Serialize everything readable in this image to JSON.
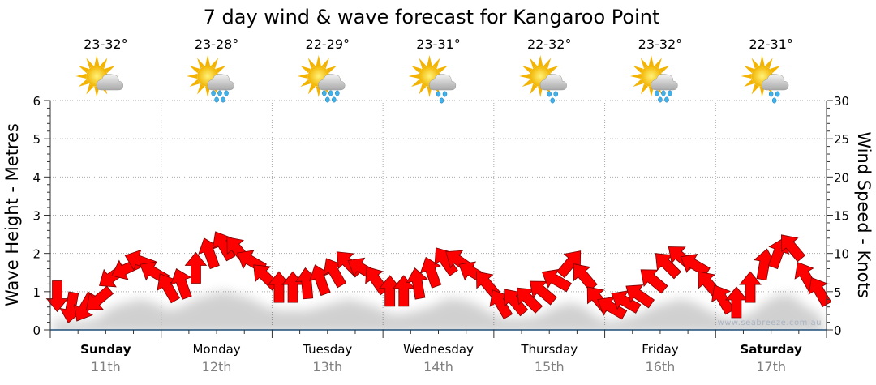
{
  "chart_data": {
    "type": "line",
    "title": "7 day wind & wave forecast for Kangaroo Point",
    "ylabel_left": "Wave Height - Metres",
    "ylabel_right": "Wind Speed - Knots",
    "ylim_left": [
      0,
      6
    ],
    "ylim_right": [
      0,
      30
    ],
    "yticks_left": [
      "0",
      "1",
      "2",
      "3",
      "4",
      "5",
      "6"
    ],
    "yticks_right": [
      "0",
      "5",
      "10",
      "15",
      "20",
      "25",
      "30"
    ],
    "grid": true,
    "watermark": "www.seabreeze.com.au",
    "days": [
      {
        "name": "Sunday",
        "date": "11th",
        "temp": "23-32°",
        "icon": "sun-cloud",
        "bold": true
      },
      {
        "name": "Monday",
        "date": "12th",
        "temp": "23-28°",
        "icon": "sun-cloud-rain",
        "bold": false
      },
      {
        "name": "Tuesday",
        "date": "13th",
        "temp": "22-29°",
        "icon": "sun-cloud-rain",
        "bold": false
      },
      {
        "name": "Wednesday",
        "date": "14th",
        "temp": "23-31°",
        "icon": "sun-cloud-light-rain",
        "bold": false
      },
      {
        "name": "Thursday",
        "date": "15th",
        "temp": "22-32°",
        "icon": "sun-cloud-light-rain",
        "bold": false
      },
      {
        "name": "Friday",
        "date": "16th",
        "temp": "23-32°",
        "icon": "sun-cloud-rain",
        "bold": false
      },
      {
        "name": "Saturday",
        "date": "17th",
        "temp": "22-31°",
        "icon": "sun-cloud-light-rain",
        "bold": true
      }
    ],
    "wind_speed_knots": [
      4.5,
      3,
      3,
      4,
      7,
      8,
      9,
      7.5,
      5.5,
      6,
      8,
      10,
      11,
      10.5,
      9,
      7,
      5.5,
      5.5,
      6,
      6.5,
      7.5,
      8.7,
      8,
      6.5,
      5,
      5,
      6,
      7.5,
      9,
      9,
      7.5,
      6,
      3.4,
      3.7,
      4,
      5,
      6.5,
      8.7,
      7,
      4,
      2.9,
      3.7,
      4.5,
      6.5,
      8.5,
      9.5,
      8.5,
      6,
      4,
      3.5,
      5.5,
      8.5,
      10,
      10.8,
      7,
      5
    ],
    "wind_direction_to_deg": [
      180,
      190,
      210,
      230,
      235,
      245,
      290,
      300,
      330,
      340,
      0,
      340,
      330,
      320,
      300,
      315,
      0,
      0,
      355,
      340,
      330,
      315,
      300,
      325,
      0,
      0,
      350,
      340,
      325,
      305,
      300,
      320,
      330,
      320,
      315,
      310,
      300,
      40,
      320,
      320,
      300,
      300,
      305,
      310,
      315,
      310,
      300,
      320,
      330,
      0,
      0,
      10,
      20,
      320,
      330,
      330
    ],
    "wave_height_m": [
      0.4,
      0.3,
      0.3,
      0.4,
      0.7,
      0.8,
      0.9,
      0.8,
      0.6,
      0.7,
      0.9,
      1.0,
      1.1,
      1.0,
      0.9,
      0.7,
      0.6,
      0.6,
      0.6,
      0.7,
      0.8,
      0.9,
      0.8,
      0.7,
      0.5,
      0.5,
      0.6,
      0.7,
      0.9,
      0.9,
      0.8,
      0.6,
      0.4,
      0.4,
      0.4,
      0.5,
      0.7,
      0.8,
      0.7,
      0.4,
      0.3,
      0.4,
      0.5,
      0.7,
      0.8,
      0.9,
      0.8,
      0.6,
      0.4,
      0.4,
      0.5,
      0.8,
      1.0,
      1.0,
      0.7,
      0.5
    ]
  }
}
